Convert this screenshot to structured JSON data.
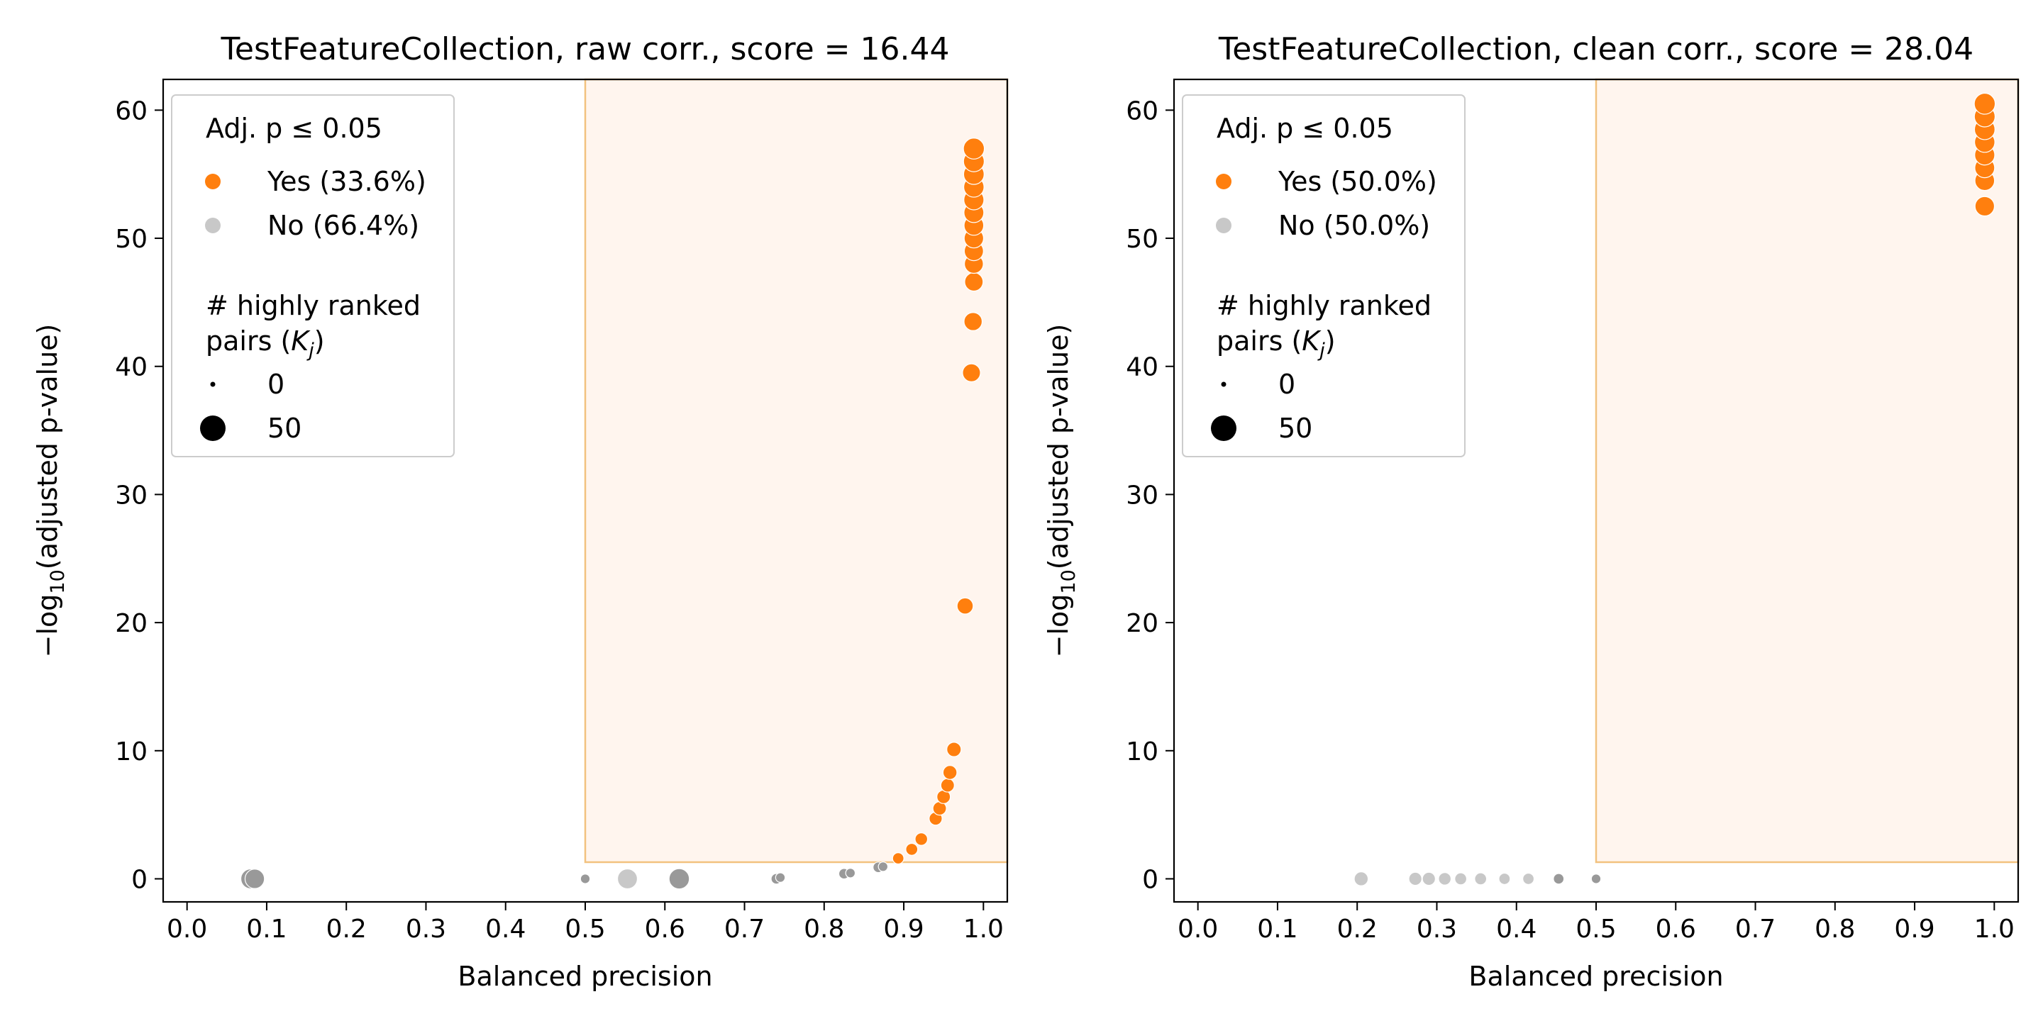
{
  "chart_data": [
    {
      "type": "scatter",
      "title": "TestFeatureCollection, raw corr., score = 16.44",
      "xlabel": "Balanced precision",
      "ylabel_prefix": "−log",
      "ylabel_sub": "10",
      "ylabel_suffix": "(adjusted p-value)",
      "xlim": [
        -0.03,
        1.03
      ],
      "ylim": [
        -1.8,
        62.4
      ],
      "xticks": [
        "0.0",
        "0.1",
        "0.2",
        "0.3",
        "0.4",
        "0.5",
        "0.6",
        "0.7",
        "0.8",
        "0.9",
        "1.0"
      ],
      "yticks": [
        "0",
        "10",
        "20",
        "30",
        "40",
        "50",
        "60"
      ],
      "threshold": {
        "x": 0.5,
        "y": 1.3
      },
      "legend": {
        "title": "Adj. p ≤ 0.05",
        "yes_label": "Yes (33.6%)",
        "no_label": "No (66.4%)",
        "size_title_line1": "# highly ranked",
        "size_title_line2_prefix": "pairs (",
        "size_title_line2_k": "K",
        "size_title_line2_sub": "j",
        "size_title_line2_suffix": ")",
        "size_min_label": "0",
        "size_max_label": "50",
        "placement": "upper-left"
      },
      "colors": {
        "yes": "#ff7f0e",
        "no_light": "#c8c8c8",
        "no_dark": "#999999",
        "region": "#fff5ee",
        "region_edge": "#f2c27f"
      },
      "points": [
        {
          "x": 0.08,
          "y": 0.0,
          "k": 28,
          "sig": false
        },
        {
          "x": 0.085,
          "y": 0.0,
          "k": 26,
          "sig": false
        },
        {
          "x": 0.5,
          "y": 0.0,
          "k": 1,
          "sig": false
        },
        {
          "x": 0.553,
          "y": 0.0,
          "k": 28,
          "sig": false
        },
        {
          "x": 0.618,
          "y": 0.0,
          "k": 30,
          "sig": false
        },
        {
          "x": 0.74,
          "y": 0.0,
          "k": 2,
          "sig": false
        },
        {
          "x": 0.745,
          "y": 0.1,
          "k": 1,
          "sig": false
        },
        {
          "x": 0.825,
          "y": 0.4,
          "k": 2,
          "sig": false
        },
        {
          "x": 0.833,
          "y": 0.45,
          "k": 1,
          "sig": false
        },
        {
          "x": 0.868,
          "y": 0.9,
          "k": 2,
          "sig": false
        },
        {
          "x": 0.874,
          "y": 0.95,
          "k": 1,
          "sig": false
        },
        {
          "x": 0.893,
          "y": 1.6,
          "k": 3,
          "sig": true
        },
        {
          "x": 0.91,
          "y": 2.3,
          "k": 4,
          "sig": true
        },
        {
          "x": 0.922,
          "y": 3.1,
          "k": 5,
          "sig": true
        },
        {
          "x": 0.94,
          "y": 4.7,
          "k": 6,
          "sig": true
        },
        {
          "x": 0.945,
          "y": 5.5,
          "k": 7,
          "sig": true
        },
        {
          "x": 0.95,
          "y": 6.4,
          "k": 7,
          "sig": true
        },
        {
          "x": 0.955,
          "y": 7.3,
          "k": 7,
          "sig": true
        },
        {
          "x": 0.958,
          "y": 8.3,
          "k": 8,
          "sig": true
        },
        {
          "x": 0.963,
          "y": 10.1,
          "k": 9,
          "sig": true
        },
        {
          "x": 0.977,
          "y": 21.3,
          "k": 14,
          "sig": true
        },
        {
          "x": 0.985,
          "y": 39.5,
          "k": 20,
          "sig": true
        },
        {
          "x": 0.987,
          "y": 43.5,
          "k": 21,
          "sig": true
        },
        {
          "x": 0.988,
          "y": 46.6,
          "k": 22,
          "sig": true
        },
        {
          "x": 0.988,
          "y": 48.0,
          "k": 24,
          "sig": true
        },
        {
          "x": 0.988,
          "y": 49.0,
          "k": 25,
          "sig": true
        },
        {
          "x": 0.988,
          "y": 50.0,
          "k": 26,
          "sig": true
        },
        {
          "x": 0.988,
          "y": 51.0,
          "k": 27,
          "sig": true
        },
        {
          "x": 0.988,
          "y": 52.0,
          "k": 28,
          "sig": true
        },
        {
          "x": 0.988,
          "y": 53.0,
          "k": 29,
          "sig": true
        },
        {
          "x": 0.988,
          "y": 54.0,
          "k": 30,
          "sig": true
        },
        {
          "x": 0.988,
          "y": 55.0,
          "k": 31,
          "sig": true
        },
        {
          "x": 0.988,
          "y": 56.0,
          "k": 32,
          "sig": true
        },
        {
          "x": 0.988,
          "y": 57.0,
          "k": 33,
          "sig": true
        }
      ]
    },
    {
      "type": "scatter",
      "title": "TestFeatureCollection, clean corr., score = 28.04",
      "xlabel": "Balanced precision",
      "ylabel_prefix": "−log",
      "ylabel_sub": "10",
      "ylabel_suffix": "(adjusted p-value)",
      "xlim": [
        -0.03,
        1.03
      ],
      "ylim": [
        -1.8,
        62.4
      ],
      "xticks": [
        "0.0",
        "0.1",
        "0.2",
        "0.3",
        "0.4",
        "0.5",
        "0.6",
        "0.7",
        "0.8",
        "0.9",
        "1.0"
      ],
      "yticks": [
        "0",
        "10",
        "20",
        "30",
        "40",
        "50",
        "60"
      ],
      "threshold": {
        "x": 0.5,
        "y": 1.3
      },
      "legend": {
        "title": "Adj. p ≤ 0.05",
        "yes_label": "Yes (50.0%)",
        "no_label": "No (50.0%)",
        "size_title_line1": "# highly ranked",
        "size_title_line2_prefix": "pairs (",
        "size_title_line2_k": "K",
        "size_title_line2_sub": "j",
        "size_title_line2_suffix": ")",
        "size_min_label": "0",
        "size_max_label": "50",
        "placement": "upper-left"
      },
      "colors": {
        "yes": "#ff7f0e",
        "no_light": "#c8c8c8",
        "no_dark": "#999999",
        "region": "#fff5ee",
        "region_edge": "#f2c27f"
      },
      "points": [
        {
          "x": 0.205,
          "y": 0.0,
          "k": 8,
          "sig": false
        },
        {
          "x": 0.273,
          "y": 0.0,
          "k": 6,
          "sig": false
        },
        {
          "x": 0.29,
          "y": 0.0,
          "k": 6,
          "sig": false
        },
        {
          "x": 0.31,
          "y": 0.0,
          "k": 5,
          "sig": false
        },
        {
          "x": 0.33,
          "y": 0.0,
          "k": 4,
          "sig": false
        },
        {
          "x": 0.355,
          "y": 0.0,
          "k": 4,
          "sig": false
        },
        {
          "x": 0.385,
          "y": 0.0,
          "k": 3,
          "sig": false
        },
        {
          "x": 0.415,
          "y": 0.0,
          "k": 3,
          "sig": false
        },
        {
          "x": 0.453,
          "y": 0.0,
          "k": 2,
          "sig": false
        },
        {
          "x": 0.5,
          "y": 0.0,
          "k": 1,
          "sig": false
        },
        {
          "x": 0.988,
          "y": 52.5,
          "k": 26,
          "sig": true
        },
        {
          "x": 0.988,
          "y": 54.5,
          "k": 27,
          "sig": true
        },
        {
          "x": 0.988,
          "y": 55.5,
          "k": 28,
          "sig": true
        },
        {
          "x": 0.988,
          "y": 56.5,
          "k": 29,
          "sig": true
        },
        {
          "x": 0.988,
          "y": 57.5,
          "k": 30,
          "sig": true
        },
        {
          "x": 0.988,
          "y": 58.5,
          "k": 31,
          "sig": true
        },
        {
          "x": 0.988,
          "y": 59.5,
          "k": 32,
          "sig": true
        },
        {
          "x": 0.988,
          "y": 60.5,
          "k": 33,
          "sig": true
        }
      ]
    }
  ]
}
